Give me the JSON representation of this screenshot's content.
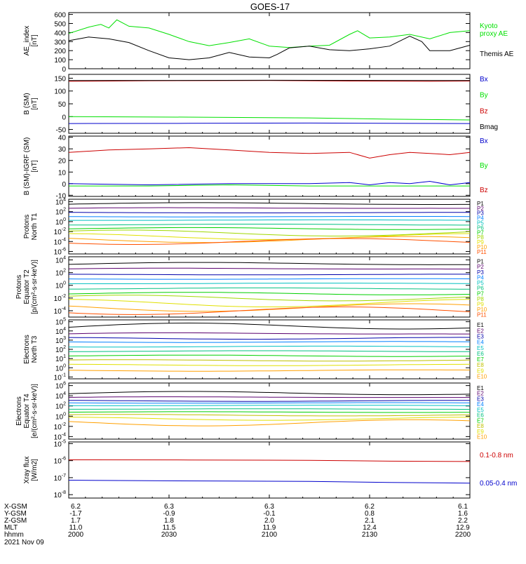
{
  "title": "GOES-17",
  "colors": {
    "black": "#000000",
    "green": "#00e000",
    "blue": "#0000cc",
    "red": "#cc0000",
    "P": [
      "#000000",
      "#5a006e",
      "#0000aa",
      "#0080ff",
      "#00c0c0",
      "#00c080",
      "#00d000",
      "#a0d800",
      "#e0e000",
      "#ffa000",
      "#ff5000",
      "#cc0000"
    ],
    "E": [
      "#000000",
      "#5a006e",
      "#0000aa",
      "#0080ff",
      "#00c0c0",
      "#00c080",
      "#00d000",
      "#c0c000",
      "#e0e000",
      "#ffa000",
      "#cc0000"
    ]
  },
  "chart_data": [
    {
      "type": "line",
      "ylabel": "AE_index\n[nT]",
      "yticks": [
        "0",
        "100",
        "200",
        "300",
        "400",
        "500",
        "600"
      ],
      "ylim": [
        0,
        620
      ],
      "series": [
        {
          "name": "Kyoto\nproxy AE",
          "color": "green",
          "x": [
            0,
            0.05,
            0.08,
            0.1,
            0.12,
            0.15,
            0.2,
            0.25,
            0.3,
            0.35,
            0.4,
            0.45,
            0.5,
            0.55,
            0.6,
            0.65,
            0.7,
            0.72,
            0.75,
            0.8,
            0.85,
            0.9,
            0.95,
            1.0
          ],
          "y": [
            390,
            460,
            490,
            450,
            540,
            470,
            450,
            380,
            300,
            255,
            290,
            330,
            250,
            235,
            250,
            260,
            380,
            420,
            340,
            350,
            380,
            330,
            400,
            420
          ]
        },
        {
          "name": "Themis AE",
          "color": "black",
          "x": [
            0,
            0.05,
            0.1,
            0.15,
            0.2,
            0.25,
            0.3,
            0.35,
            0.4,
            0.45,
            0.5,
            0.52,
            0.55,
            0.6,
            0.65,
            0.7,
            0.75,
            0.8,
            0.85,
            0.88,
            0.9,
            0.95,
            1.0
          ],
          "y": [
            310,
            350,
            330,
            290,
            200,
            120,
            100,
            120,
            180,
            130,
            120,
            160,
            230,
            250,
            210,
            200,
            220,
            250,
            360,
            300,
            200,
            200,
            260
          ]
        }
      ]
    },
    {
      "type": "line",
      "ylabel": "B (SM)\n[nT]",
      "yticks": [
        "-50",
        "0",
        "50",
        "100",
        "150"
      ],
      "ylim": [
        -65,
        165
      ],
      "series": [
        {
          "name": "Bx",
          "color": "blue",
          "x": [
            0,
            0.3,
            0.6,
            1.0
          ],
          "y": [
            -27,
            -26,
            -25,
            -27
          ]
        },
        {
          "name": "By",
          "color": "green",
          "x": [
            0,
            0.3,
            0.6,
            0.8,
            1.0
          ],
          "y": [
            0,
            -2,
            -5,
            -10,
            -13
          ]
        },
        {
          "name": "Bz",
          "color": "red",
          "x": [
            0,
            0.2,
            0.5,
            0.7,
            0.9,
            1.0
          ],
          "y": [
            138,
            140,
            141,
            139,
            138,
            139
          ]
        },
        {
          "name": "Bmag",
          "color": "black",
          "x": [
            0,
            0.5,
            1.0
          ],
          "y": [
            141,
            142,
            141
          ]
        }
      ]
    },
    {
      "type": "line",
      "ylabel": "B (SM)-IGRF (SM)\n[nT]",
      "yticks": [
        "-10",
        "0",
        "10",
        "20",
        "30",
        "40"
      ],
      "ylim": [
        -11,
        41
      ],
      "series": [
        {
          "name": "Bx",
          "color": "blue",
          "x": [
            0,
            0.2,
            0.4,
            0.6,
            0.7,
            0.75,
            0.8,
            0.85,
            0.9,
            0.95,
            1.0
          ],
          "y": [
            0,
            -1,
            0,
            0,
            1,
            -1,
            1,
            0,
            2,
            -1,
            1
          ]
        },
        {
          "name": "By",
          "color": "green",
          "x": [
            0,
            0.2,
            0.4,
            0.6,
            0.8,
            1.0
          ],
          "y": [
            -2,
            -2,
            -1,
            -2,
            -2,
            -2
          ]
        },
        {
          "name": "Bz",
          "color": "red",
          "x": [
            0,
            0.1,
            0.2,
            0.3,
            0.4,
            0.5,
            0.6,
            0.7,
            0.75,
            0.8,
            0.85,
            0.9,
            0.95,
            1.0
          ],
          "y": [
            27,
            29,
            30,
            31,
            29,
            27,
            26,
            27,
            22,
            25,
            27,
            26,
            25,
            27
          ]
        }
      ]
    },
    {
      "type": "line",
      "log": true,
      "ylabel": "Protons\nNorth T1",
      "yticks_exp": [
        4,
        2,
        0,
        -2,
        -4,
        -6
      ],
      "ylim_exp": [
        -6.5,
        4.5
      ],
      "labels": [
        "P1",
        "P2",
        "P3",
        "P4",
        "P5",
        "P6",
        "P7",
        "P8",
        "P9",
        "P10",
        "P11"
      ],
      "levels_exp": [
        3.5,
        2.6,
        1.8,
        1.0,
        0.3,
        -0.6,
        -1.4,
        -2.3,
        -3.0,
        -3.6,
        -4.0
      ],
      "wiggle": [
        0.15,
        0.1,
        0.05,
        0.05,
        0.05,
        0.1,
        0.2,
        0.4,
        0.4,
        0.4,
        0.4
      ]
    },
    {
      "type": "line",
      "log": true,
      "ylabel": "Protons\nEquator T2\n[p/(cm²-s-sr-keV)]",
      "yticks_exp": [
        4,
        2,
        0,
        -2,
        -4
      ],
      "ylim_exp": [
        -5,
        4.5
      ],
      "labels": [
        "P1",
        "P2",
        "P3",
        "P4",
        "P5",
        "P6",
        "P7",
        "P8",
        "P9",
        "P10",
        "P11"
      ],
      "levels_exp": [
        3.3,
        2.5,
        1.7,
        1.0,
        0.3,
        -0.5,
        -1.3,
        -2.0,
        -2.8,
        -3.5,
        -4.0
      ],
      "wiggle": [
        0.15,
        0.1,
        0.05,
        0.05,
        0.05,
        0.1,
        0.2,
        0.3,
        0.4,
        0.4,
        0.4
      ]
    },
    {
      "type": "line",
      "log": true,
      "ylabel": "Electrons\nNorth T3",
      "yticks_exp": [
        5,
        4,
        3,
        2,
        1,
        0,
        -1
      ],
      "ylim_exp": [
        -1.2,
        5.2
      ],
      "labels": [
        "E1",
        "E2",
        "E3",
        "E4",
        "E5",
        "E6",
        "E7",
        "E8",
        "E9",
        "E10"
      ],
      "levels_exp": [
        4.4,
        3.6,
        3.2,
        2.8,
        2.3,
        1.8,
        1.3,
        0.8,
        0.3,
        -0.3
      ],
      "wiggle": [
        0.3,
        0.1,
        0.1,
        0.05,
        0.05,
        0.05,
        0.05,
        0.05,
        0.05,
        0.05
      ]
    },
    {
      "type": "line",
      "log": true,
      "ylabel": "Electrons\nEquator T4\n[e/(cm²-s-sr-keV)]",
      "yticks_exp": [
        6,
        4,
        2,
        0,
        -2,
        -4
      ],
      "ylim_exp": [
        -4.5,
        6.5
      ],
      "labels": [
        "E1",
        "E2",
        "E3",
        "E4",
        "E5",
        "E6",
        "E7",
        "E8",
        "E9",
        "E10"
      ],
      "levels_exp": [
        4.4,
        3.6,
        3.0,
        2.6,
        2.1,
        1.4,
        0.8,
        0.2,
        -0.5,
        -1.3
      ],
      "wiggle": [
        0.3,
        0.1,
        0.1,
        0.05,
        0.05,
        0.05,
        0.05,
        0.1,
        0.2,
        0.4
      ]
    },
    {
      "type": "line",
      "log": true,
      "ylabel": "Xray flux\n[W/m2]",
      "yticks_exp": [
        -5,
        -6,
        -7,
        -8
      ],
      "ylim_exp": [
        -8.2,
        -4.9
      ],
      "series": [
        {
          "name": "0.1-0.8 nm",
          "color": "red",
          "x": [
            0,
            0.3,
            0.6,
            0.8,
            1.0
          ],
          "y_exp": [
            -5.95,
            -5.96,
            -5.98,
            -6.03,
            -6.05
          ]
        },
        {
          "name": "0.05-0.4 nm",
          "color": "blue",
          "x": [
            0,
            0.2,
            0.4,
            0.6,
            0.8,
            1.0
          ],
          "y_exp": [
            -7.15,
            -7.18,
            -7.2,
            -7.22,
            -7.28,
            -7.32
          ]
        }
      ]
    }
  ],
  "orbit": {
    "row_labels": [
      "X-GSM",
      "Y-GSM",
      "Z-GSM",
      "MLT",
      "hhmm"
    ],
    "columns": [
      [
        "6.2",
        "-1.7",
        "1.7",
        "11.0",
        "2000"
      ],
      [
        "6.3",
        "-0.9",
        "1.8",
        "11.5",
        "2030"
      ],
      [
        "6.3",
        "-0.1",
        "2.0",
        "11.9",
        "2100"
      ],
      [
        "6.2",
        "0.8",
        "2.1",
        "12.4",
        "2130"
      ],
      [
        "6.1",
        "1.6",
        "2.2",
        "12.9",
        "2200"
      ]
    ],
    "date": "2021 Nov 09"
  }
}
